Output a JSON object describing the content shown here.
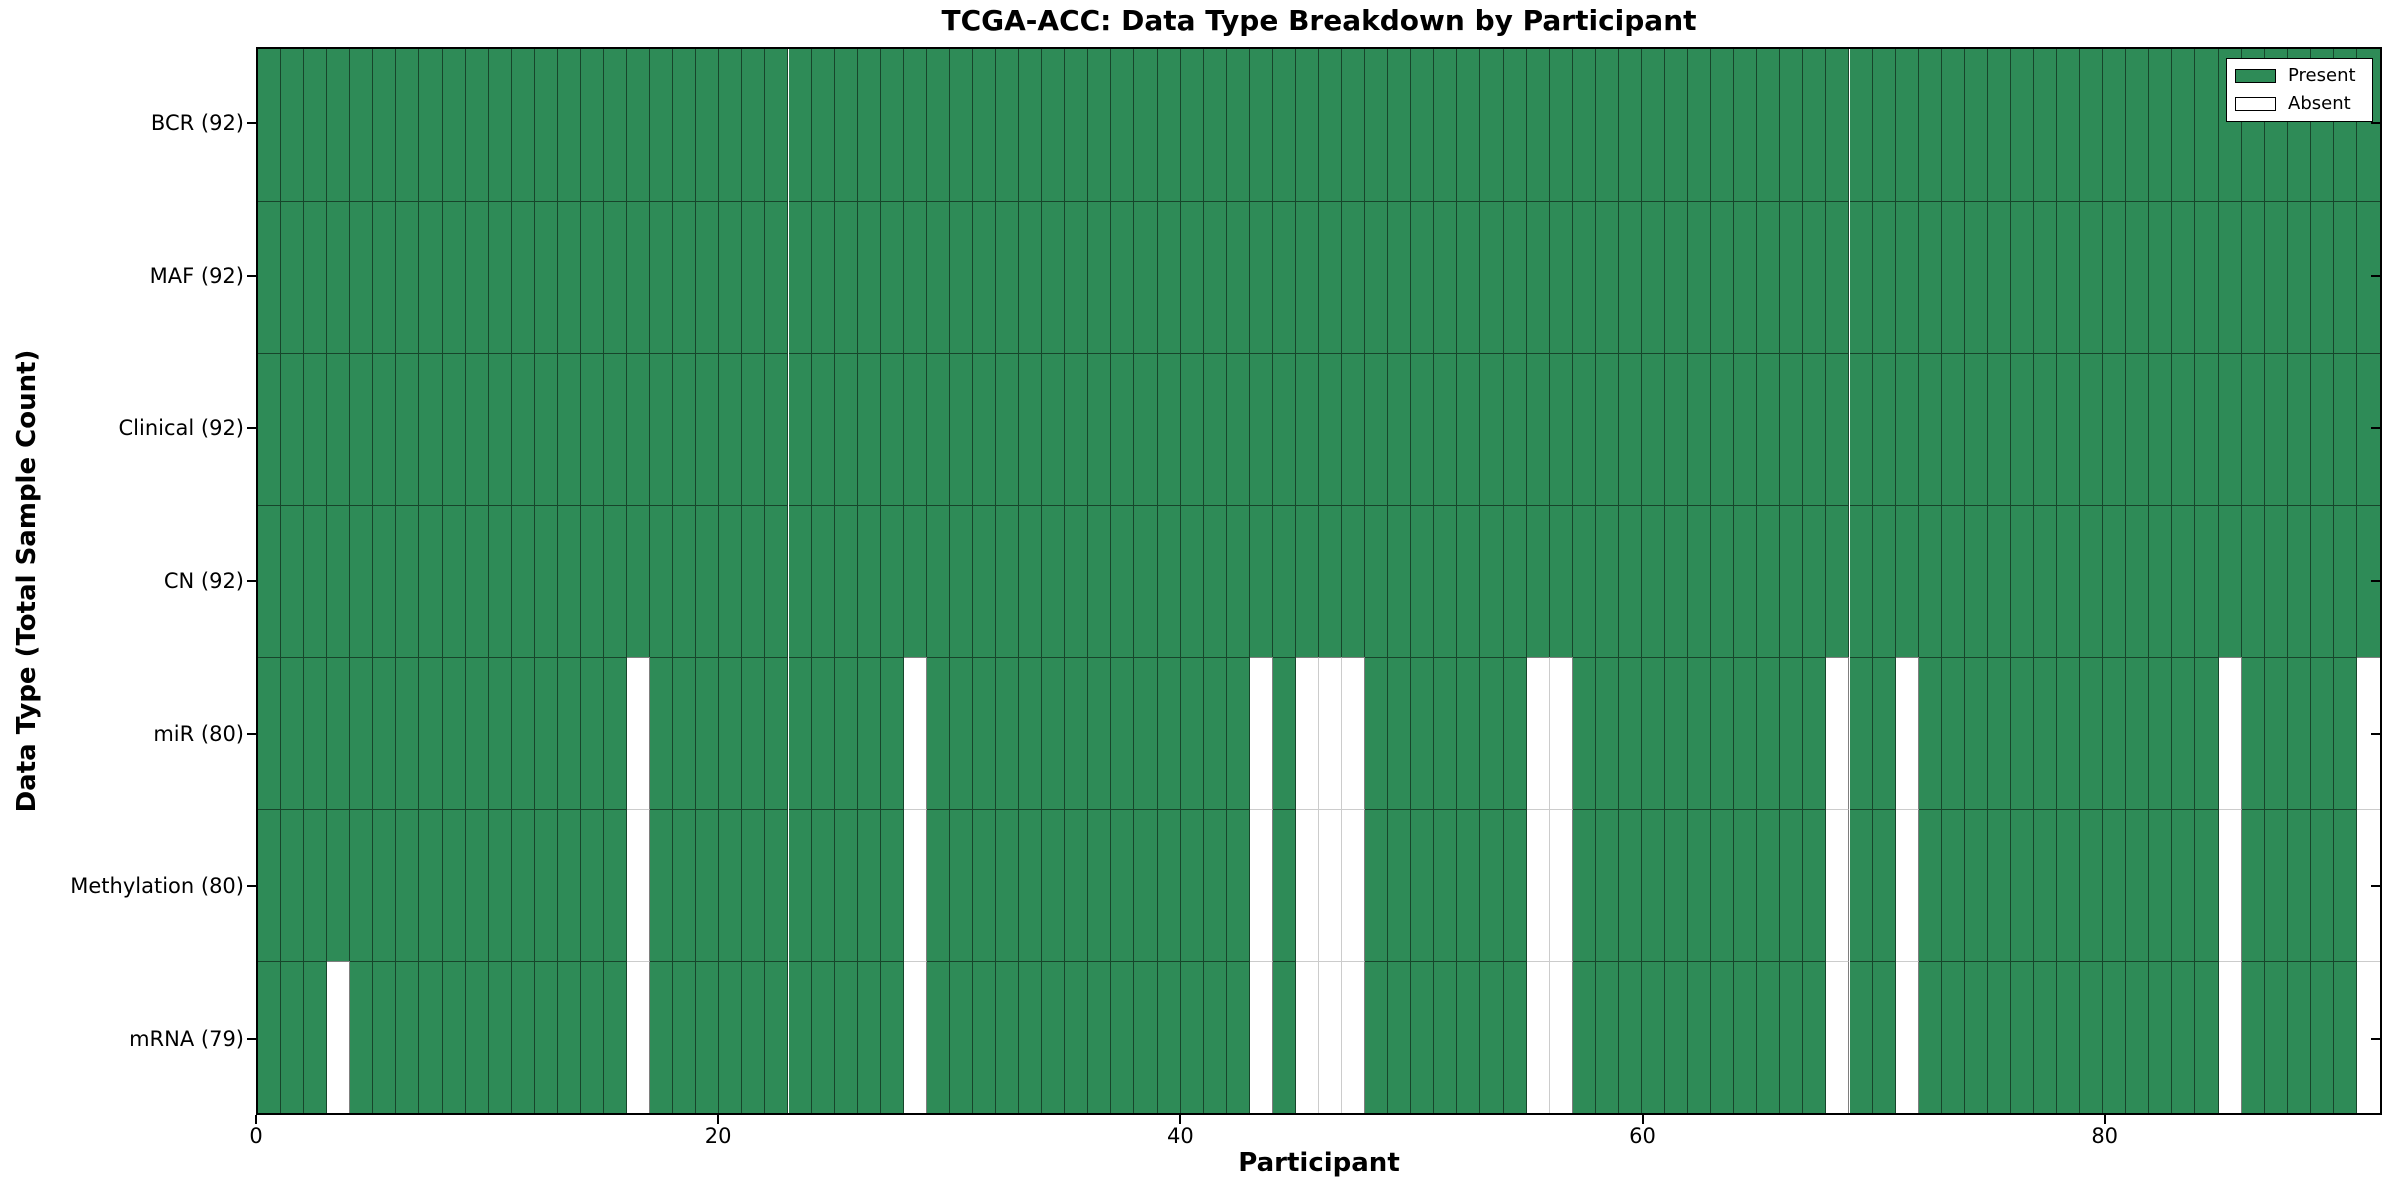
{
  "title": "TCGA-ACC: Data Type Breakdown by Participant",
  "x_axis_title": "Participant",
  "y_axis_title": "Data Type (Total Sample Count)",
  "legend": {
    "present_label": "Present",
    "absent_label": "Absent"
  },
  "colors": {
    "present": "#2e8b57",
    "absent": "#ffffff"
  },
  "chart_data": {
    "type": "heatmap",
    "title": "TCGA-ACC: Data Type Breakdown by Participant",
    "xlabel": "Participant",
    "ylabel": "Data Type (Total Sample Count)",
    "legend_entries": [
      "Present",
      "Absent"
    ],
    "legend_position": "upper right",
    "grid": false,
    "n_participants": 92,
    "x_range": [
      0,
      92
    ],
    "x_ticks": [
      0,
      20,
      40,
      60,
      80
    ],
    "rows": [
      {
        "name": "BCR",
        "label": "BCR (92)",
        "present_count": 92,
        "absent_participants": []
      },
      {
        "name": "MAF",
        "label": "MAF (92)",
        "present_count": 92,
        "absent_participants": []
      },
      {
        "name": "Clinical",
        "label": "Clinical (92)",
        "present_count": 92,
        "absent_participants": []
      },
      {
        "name": "CN",
        "label": "CN (92)",
        "present_count": 92,
        "absent_participants": []
      },
      {
        "name": "miR",
        "label": "miR (80)",
        "present_count": 80,
        "absent_participants": [
          16,
          28,
          43,
          45,
          46,
          47,
          55,
          56,
          68,
          71,
          85,
          91
        ]
      },
      {
        "name": "Methylation",
        "label": "Methylation (80)",
        "present_count": 80,
        "absent_participants": [
          16,
          28,
          43,
          45,
          46,
          47,
          55,
          56,
          68,
          71,
          85,
          91
        ]
      },
      {
        "name": "mRNA",
        "label": "mRNA (79)",
        "present_count": 79,
        "absent_participants": [
          3,
          16,
          28,
          43,
          45,
          46,
          47,
          55,
          56,
          68,
          71,
          85,
          91
        ]
      }
    ]
  }
}
